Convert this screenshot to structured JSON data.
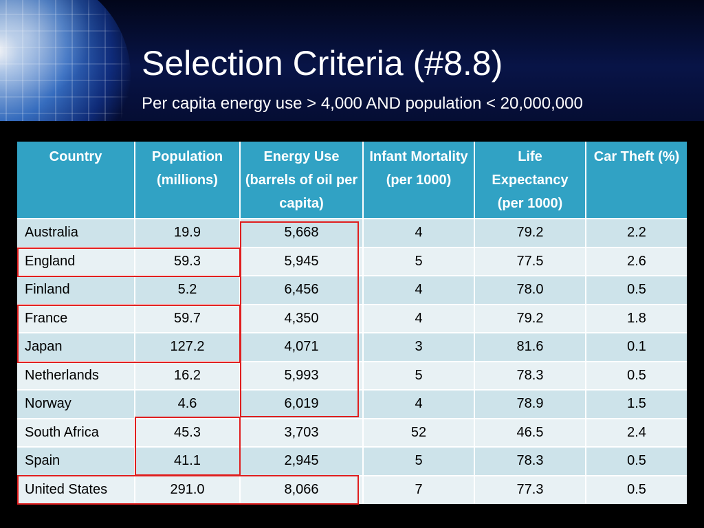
{
  "slide": {
    "title": "Selection Criteria (#8.8)",
    "subtitle": "Per capita energy use > 4,000 AND population < 20,000,000"
  },
  "table": {
    "headers": [
      "Country",
      "Population (millions)",
      "Energy Use (barrels of oil per capita)",
      "Infant Mortality (per 1000)",
      "Life Expectancy (per 1000)",
      "Car Theft (%)"
    ],
    "rows": [
      [
        "Australia",
        "19.9",
        "5,668",
        "4",
        "79.2",
        "2.2"
      ],
      [
        "England",
        "59.3",
        "5,945",
        "5",
        "77.5",
        "2.6"
      ],
      [
        "Finland",
        "5.2",
        "6,456",
        "4",
        "78.0",
        "0.5"
      ],
      [
        "France",
        "59.7",
        "4,350",
        "4",
        "79.2",
        "1.8"
      ],
      [
        "Japan",
        "127.2",
        "4,071",
        "3",
        "81.6",
        "0.1"
      ],
      [
        "Netherlands",
        "16.2",
        "5,993",
        "5",
        "78.3",
        "0.5"
      ],
      [
        "Norway",
        "4.6",
        "6,019",
        "4",
        "78.9",
        "1.5"
      ],
      [
        "South Africa",
        "45.3",
        "3,703",
        "52",
        "46.5",
        "2.4"
      ],
      [
        "Spain",
        "41.1",
        "2,945",
        "5",
        "78.3",
        "0.5"
      ],
      [
        "United States",
        "291.0",
        "8,066",
        "7",
        "77.3",
        "0.5"
      ]
    ]
  },
  "colors": {
    "header_fill": "#31a2c4",
    "row_odd": "#cde3ea",
    "row_even": "#e8f1f4",
    "highlight_border": "#e01e1e"
  }
}
